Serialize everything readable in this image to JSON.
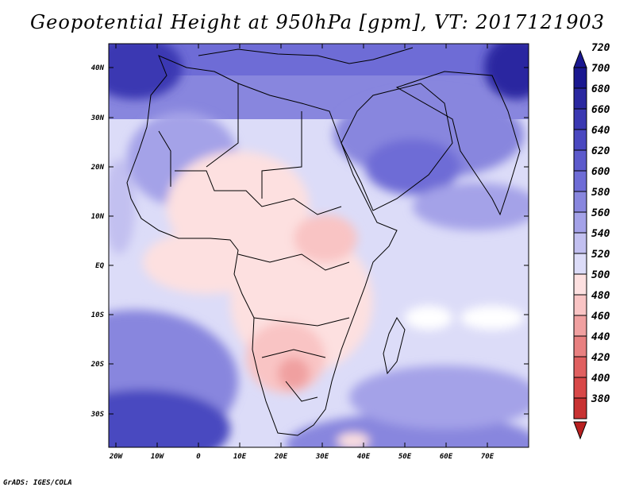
{
  "title": "Geopotential Height at 950hPa [gpm], VT: 2017121903",
  "credit": "GrADS: IGES/COLA",
  "map": {
    "lat_labels": [
      "40N",
      "30N",
      "20N",
      "10N",
      "EQ",
      "10S",
      "20S",
      "30S"
    ],
    "lon_labels": [
      "20W",
      "10W",
      "0",
      "10E",
      "20E",
      "30E",
      "40E",
      "50E",
      "60E",
      "70E"
    ]
  },
  "colorbar": {
    "levels": [
      "720",
      "700",
      "680",
      "660",
      "640",
      "620",
      "600",
      "580",
      "560",
      "540",
      "520",
      "500",
      "480",
      "460",
      "440",
      "420",
      "400",
      "380"
    ],
    "colors": [
      "#1a1890",
      "#2a28a0",
      "#3a38b2",
      "#4a48c0",
      "#5c5acc",
      "#6e6cd6",
      "#8886de",
      "#a4a2e8",
      "#c2c0f0",
      "#dcdcf8",
      "#fde0e0",
      "#f9c4c4",
      "#f0a0a0",
      "#e88080",
      "#e06060",
      "#d84848",
      "#c83232",
      "#b82020"
    ]
  }
}
